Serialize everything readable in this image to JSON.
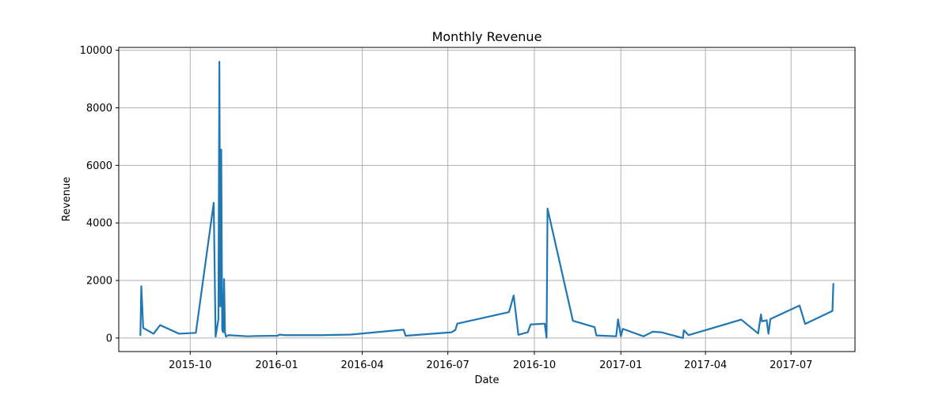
{
  "chart_data": {
    "type": "line",
    "title": "Monthly Revenue",
    "xlabel": "Date",
    "ylabel": "Revenue",
    "grid": true,
    "line_color": "#1f77b4",
    "x_ticks": [
      "2015-10",
      "2016-01",
      "2016-04",
      "2016-07",
      "2016-10",
      "2017-01",
      "2017-04",
      "2017-07"
    ],
    "y_ticks": [
      0,
      2000,
      4000,
      6000,
      8000,
      10000
    ],
    "xlim": [
      "2015-07-17",
      "2017-09-07"
    ],
    "ylim": [
      -470,
      10100
    ],
    "series": [
      {
        "x": [
          "2015-08-09",
          "2015-08-10",
          "2015-08-12",
          "2015-08-23",
          "2015-08-30",
          "2015-09-19",
          "2015-10-07",
          "2015-10-26",
          "2015-10-28",
          "2015-10-31",
          "2015-11-01",
          "2015-11-02",
          "2015-11-03",
          "2015-11-04",
          "2015-11-05",
          "2015-11-06",
          "2015-11-07",
          "2015-11-08",
          "2015-11-09",
          "2015-11-11",
          "2015-12-01",
          "2015-12-10",
          "2016-01-02",
          "2016-01-04",
          "2016-01-09",
          "2016-02-18",
          "2016-03-20",
          "2016-05-15",
          "2016-05-17",
          "2016-07-05",
          "2016-07-09",
          "2016-07-11",
          "2016-09-04",
          "2016-09-09",
          "2016-09-14",
          "2016-09-24",
          "2016-09-27",
          "2016-10-12",
          "2016-10-14",
          "2016-10-15",
          "2016-11-11",
          "2016-12-04",
          "2016-12-06",
          "2016-12-27",
          "2016-12-29",
          "2017-01-01",
          "2017-01-03",
          "2017-01-25",
          "2017-02-04",
          "2017-02-13",
          "2017-03-08",
          "2017-03-09",
          "2017-03-14",
          "2017-05-09",
          "2017-05-27",
          "2017-05-30",
          "2017-05-31",
          "2017-06-05",
          "2017-06-07",
          "2017-06-09",
          "2017-07-10",
          "2017-07-16",
          "2017-08-14",
          "2017-08-15"
        ],
        "values": [
          100,
          1800,
          350,
          150,
          450,
          150,
          180,
          4700,
          50,
          650,
          9600,
          1100,
          6550,
          300,
          200,
          2050,
          200,
          50,
          70,
          100,
          60,
          70,
          80,
          120,
          100,
          100,
          120,
          290,
          80,
          200,
          280,
          500,
          900,
          1480,
          110,
          200,
          470,
          500,
          10,
          4500,
          600,
          380,
          90,
          60,
          650,
          60,
          320,
          60,
          220,
          200,
          0,
          270,
          100,
          640,
          160,
          820,
          580,
          620,
          150,
          660,
          1130,
          490,
          940,
          1880
        ]
      }
    ]
  }
}
